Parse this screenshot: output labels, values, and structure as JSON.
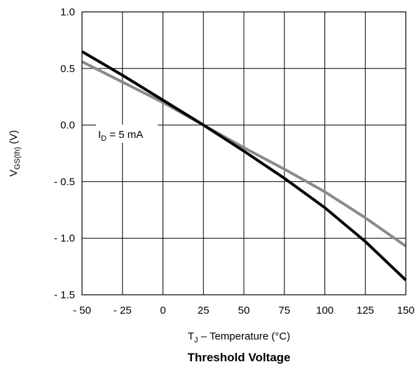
{
  "chart_data": {
    "type": "line",
    "title": "Threshold Voltage",
    "xlabel": {
      "main": "T",
      "sub": "J",
      "rest": " – Temperature (°C)"
    },
    "ylabel": {
      "main": "V",
      "sub": "GS(th)",
      "rest": " (V)"
    },
    "xlim": [
      -50,
      150
    ],
    "ylim": [
      -1.5,
      1.0
    ],
    "xticks": [
      -50,
      -25,
      0,
      25,
      50,
      75,
      100,
      125,
      150
    ],
    "yticks": [
      1.0,
      0.5,
      0.0,
      -0.5,
      -1.0,
      -1.5
    ],
    "xtick_labels": [
      "- 50",
      "- 25",
      "0",
      "25",
      "50",
      "75",
      "100",
      "125",
      "150"
    ],
    "ytick_labels": [
      "1.0",
      "0.5",
      "0.0",
      "- 0.5",
      "- 1.0",
      "- 1.5"
    ],
    "grid": true,
    "annotation": {
      "main": "I",
      "sub": "D",
      "rest": " = 5 mA"
    },
    "series": [
      {
        "color": "#000000",
        "x": [
          -50,
          -25,
          0,
          25,
          50,
          75,
          100,
          125,
          150
        ],
        "y": [
          0.65,
          0.44,
          0.22,
          0.0,
          -0.23,
          -0.47,
          -0.73,
          -1.03,
          -1.37
        ]
      },
      {
        "color": "#8a8a8a",
        "x": [
          -50,
          -25,
          0,
          25,
          50,
          75,
          100,
          125,
          150
        ],
        "y": [
          0.56,
          0.38,
          0.2,
          0.0,
          -0.2,
          -0.39,
          -0.59,
          -0.82,
          -1.07
        ]
      }
    ]
  }
}
